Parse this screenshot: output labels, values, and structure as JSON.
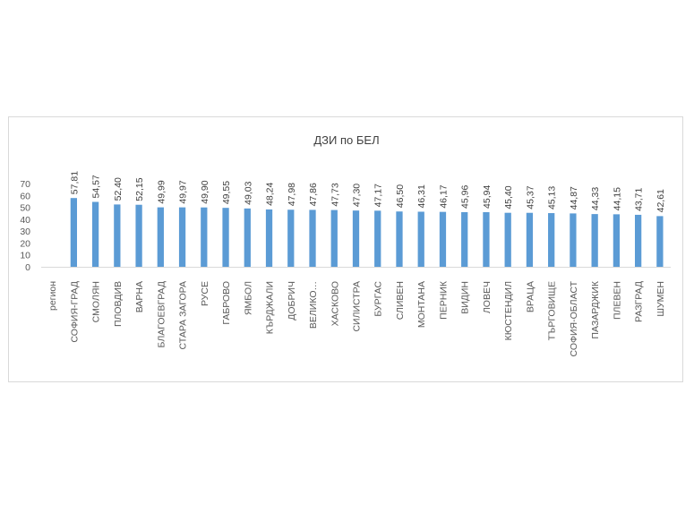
{
  "chart_data": {
    "type": "bar",
    "title": "ДЗИ по БЕЛ",
    "xlabel": "",
    "ylabel": "",
    "ylim": [
      0,
      70
    ],
    "yticks": [
      0,
      10,
      20,
      30,
      40,
      50,
      60,
      70
    ],
    "grid": false,
    "legend": "none",
    "bar_color": "#5b9bd5",
    "categories": [
      "регион",
      "СОФИЯ-ГРАД",
      "СМОЛЯН",
      "ПЛОВДИВ",
      "ВАРНА",
      "БЛАГОЕВГРАД",
      "СТАРА ЗАГОРА",
      "РУСЕ",
      "ГАБРОВО",
      "ЯМБОЛ",
      "КЪРДЖАЛИ",
      "ДОБРИЧ",
      "ВЕЛИКО…",
      "ХАСКОВО",
      "СИЛИСТРА",
      "БУРГАС",
      "СЛИВЕН",
      "МОНТАНА",
      "ПЕРНИК",
      "ВИДИН",
      "ЛОВЕЧ",
      "КЮСТЕНДИЛ",
      "ВРАЦА",
      "ТЪРГОВИЩЕ",
      "СОФИЯ-ОБЛАСТ",
      "ПАЗАРДЖИК",
      "ПЛЕВЕН",
      "РАЗГРАД",
      "ШУМЕН"
    ],
    "values": [
      null,
      57.81,
      54.57,
      52.4,
      52.15,
      49.99,
      49.97,
      49.9,
      49.55,
      49.03,
      48.24,
      47.98,
      47.86,
      47.73,
      47.3,
      47.17,
      46.5,
      46.31,
      46.17,
      45.96,
      45.94,
      45.4,
      45.37,
      45.13,
      44.87,
      44.33,
      44.15,
      43.71,
      42.61
    ],
    "value_labels": [
      "",
      "57,81",
      "54,57",
      "52,40",
      "52,15",
      "49,99",
      "49,97",
      "49,90",
      "49,55",
      "49,03",
      "48,24",
      "47,98",
      "47,86",
      "47,73",
      "47,30",
      "47,17",
      "46,50",
      "46,31",
      "46,17",
      "45,96",
      "45,94",
      "45,40",
      "45,37",
      "45,13",
      "44,87",
      "44,33",
      "44,15",
      "43,71",
      "42,61"
    ]
  }
}
